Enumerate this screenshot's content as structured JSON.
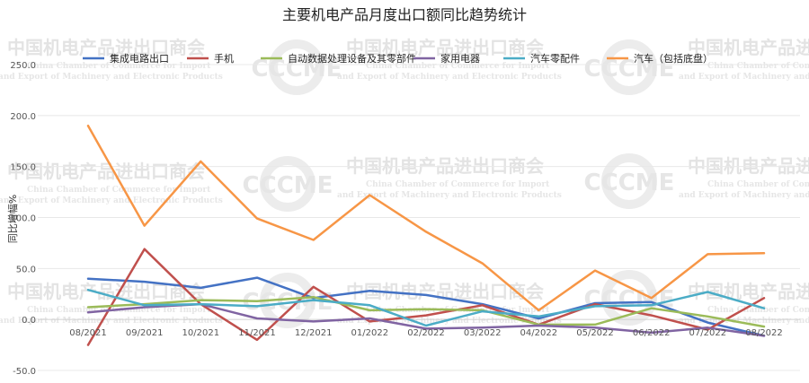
{
  "chart_data": {
    "type": "line",
    "title": "主要机电产品月度出口额同比趋势统计",
    "ylabel": "同比增幅%",
    "xlabel": "",
    "ylim": [
      -50,
      250
    ],
    "yticks": [
      "250.0",
      "200.0",
      "150.0",
      "100.0",
      "50.0",
      "0.0",
      "-50.0"
    ],
    "ytick_values": [
      250,
      200,
      150,
      100,
      50,
      0,
      -50
    ],
    "grid": "horizontal",
    "legend": "top",
    "categories": [
      "08/2021",
      "09/2021",
      "10/2021",
      "11/2021",
      "12/2021",
      "01/2022",
      "02/2022",
      "03/2022",
      "04/2022",
      "05/2022",
      "06/2022",
      "07/2022",
      "08/2022"
    ],
    "series": [
      {
        "name": "集成电路出口",
        "color": "#4472c4",
        "values": [
          40,
          37,
          31,
          41,
          21,
          28,
          24,
          15,
          1,
          16,
          17,
          -3,
          -16
        ]
      },
      {
        "name": "手机",
        "color": "#c0504d",
        "values": [
          -25,
          69,
          15,
          -20,
          32,
          -2,
          4,
          14,
          -5,
          15,
          4,
          -10,
          21
        ]
      },
      {
        "name": "自动数据处理设备及其零部件",
        "color": "#9bbb59",
        "values": [
          12,
          15,
          19,
          18,
          22,
          9,
          10,
          9,
          -5,
          -5,
          11,
          3,
          -7
        ]
      },
      {
        "name": "家用电器",
        "color": "#8064a2",
        "values": [
          7,
          12,
          15,
          1,
          -2,
          1,
          -9,
          -8,
          -6,
          -8,
          -13,
          -8,
          -16
        ]
      },
      {
        "name": "汽车零配件",
        "color": "#4bacc6",
        "values": [
          29,
          14,
          15,
          13,
          19,
          14,
          -6,
          8,
          3,
          13,
          14,
          27,
          11
        ]
      },
      {
        "name": "汽车（包括底盘）",
        "color": "#f79646",
        "values": [
          190,
          92,
          155,
          99,
          78,
          122,
          86,
          55,
          9,
          48,
          21,
          64,
          65
        ]
      }
    ]
  },
  "watermark": {
    "org_cn": "中国机电产品进出口商会",
    "org_en_line1": "China Chamber of Commerce for Import",
    "org_en_line2": "and Export of Machinery and Electronic Products",
    "logo": "CCCME"
  }
}
